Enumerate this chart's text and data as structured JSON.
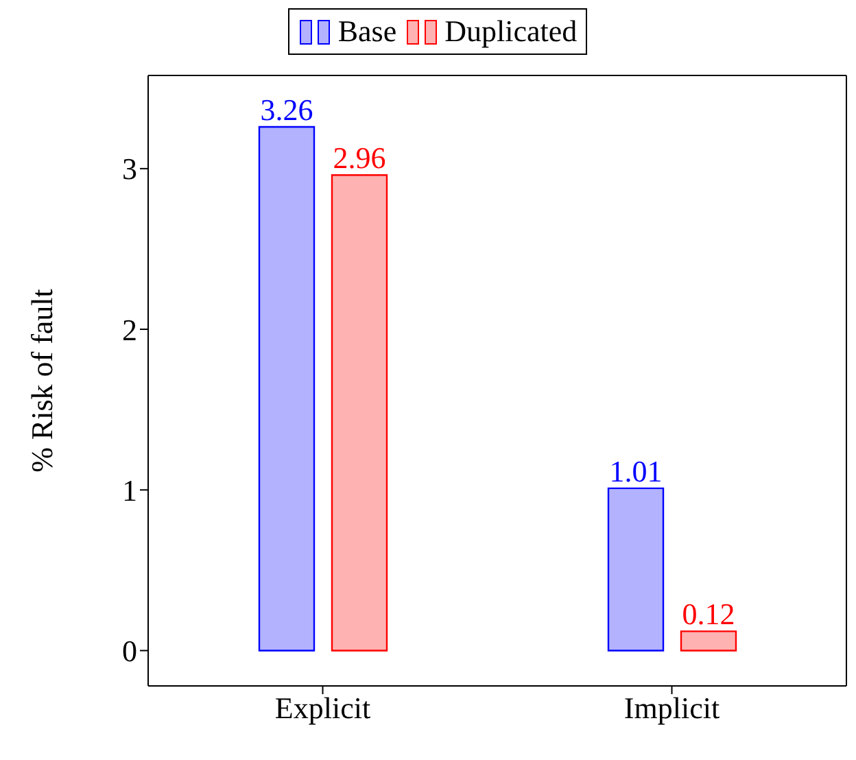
{
  "chart_data": {
    "type": "bar",
    "ylabel": "% Risk of fault",
    "categories": [
      "Explicit",
      "Implicit"
    ],
    "series": [
      {
        "name": "Base",
        "color": "#0000ff",
        "values": [
          3.26,
          1.01
        ]
      },
      {
        "name": "Duplicated",
        "color": "#ff0000",
        "values": [
          2.96,
          0.12
        ]
      }
    ],
    "ylim": [
      -0.22,
      3.58
    ],
    "yticks": [
      0,
      1,
      2,
      3
    ],
    "grid": false,
    "legend": "top",
    "data_labels": true
  }
}
